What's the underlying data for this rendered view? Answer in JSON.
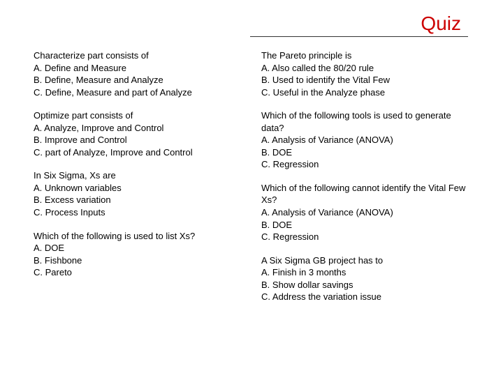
{
  "title": "Quiz",
  "title_color": "#cc0000",
  "background_color": "#ffffff",
  "text_color": "#000000",
  "font_size": 13,
  "columns": [
    {
      "questions": [
        {
          "prompt": "Characterize part consists of",
          "choices": [
            "A.  Define and Measure",
            "B.  Define, Measure and Analyze",
            "C.  Define, Measure and part of Analyze"
          ]
        },
        {
          "prompt": "Optimize part consists of",
          "choices": [
            "A. Analyze, Improve and Control",
            "B. Improve and Control",
            "C. part of Analyze, Improve and Control"
          ]
        },
        {
          "prompt": "In Six Sigma,  Xs are",
          "choices": [
            "A. Unknown variables",
            "B. Excess variation",
            "C. Process Inputs"
          ]
        },
        {
          "prompt": "Which of the following is used to list Xs?",
          "choices": [
            "A. DOE",
            "B. Fishbone",
            "C. Pareto"
          ]
        }
      ]
    },
    {
      "questions": [
        {
          "prompt": "The Pareto principle is",
          "choices": [
            "A. Also called the 80/20 rule",
            "B. Used to identify the Vital Few",
            "C. Useful in the Analyze phase"
          ]
        },
        {
          "prompt": "Which of the following tools is used to generate data?",
          "choices": [
            "A.  Analysis of Variance (ANOVA)",
            "B.  DOE",
            "C.  Regression"
          ]
        },
        {
          "prompt": "Which of the following cannot identify the Vital Few Xs?",
          "choices": [
            "A. Analysis of Variance (ANOVA)",
            "B. DOE",
            "C. Regression"
          ]
        },
        {
          "prompt": "A Six Sigma GB project has to",
          "choices": [
            "A. Finish in 3 months",
            "B. Show dollar savings",
            "C. Address the variation issue"
          ]
        }
      ]
    }
  ]
}
